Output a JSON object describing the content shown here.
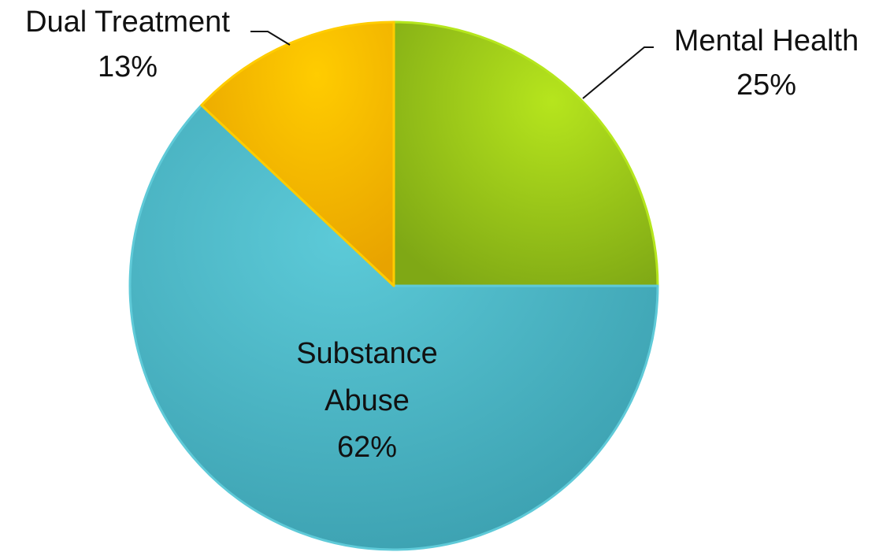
{
  "chart_data": {
    "type": "pie",
    "start_angle_deg": 0,
    "direction": "clockwise",
    "slices": [
      {
        "label": "Mental Health",
        "percent_label": "25%",
        "value": 25,
        "color": "#94C11F",
        "highlight": "#B5E61D",
        "shadow": "#6E9412"
      },
      {
        "label": "Substance Abuse",
        "label_lines": [
          "Substance",
          "Abuse"
        ],
        "percent_label": "62%",
        "value": 62,
        "color": "#4BB8C9",
        "highlight": "#5FCAD8",
        "shadow": "#2F8E9E"
      },
      {
        "label": "Dual Treatment",
        "percent_label": "13%",
        "value": 13,
        "color": "#F5B800",
        "highlight": "#FFCC00",
        "shadow": "#D99A00"
      }
    ]
  }
}
